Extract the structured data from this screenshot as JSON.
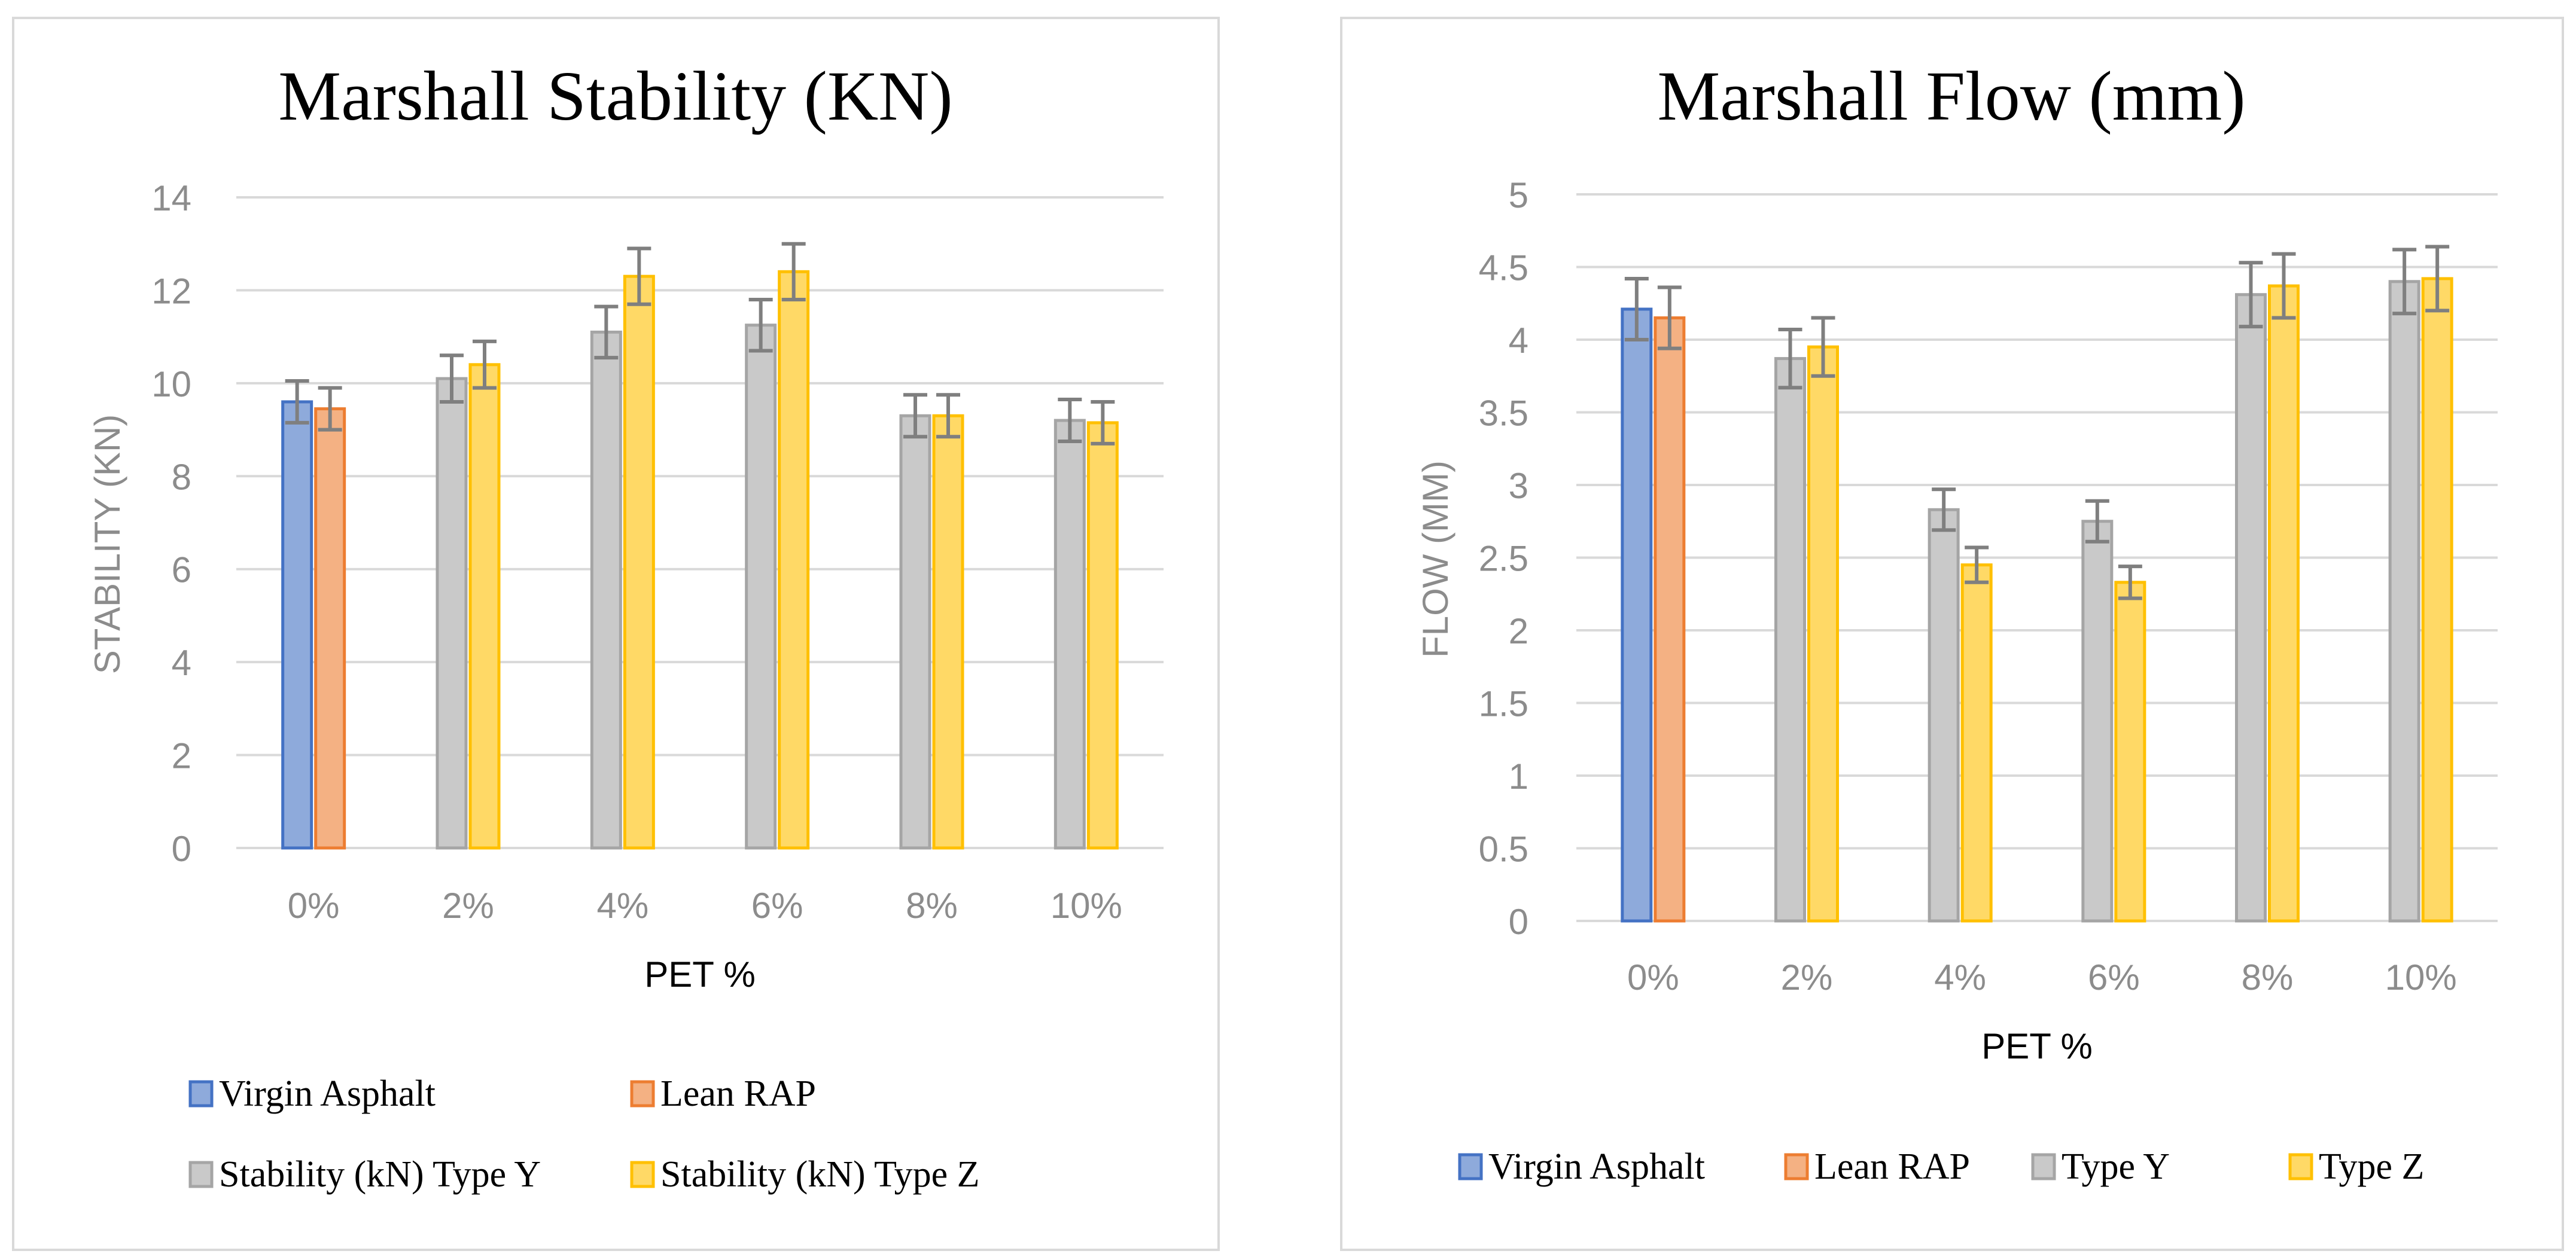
{
  "chart_data": [
    {
      "type": "bar",
      "title": "Marshall Stability (KN)",
      "xlabel": "PET %",
      "ylabel": "STABILITY (KN)",
      "ylim": [
        0,
        14
      ],
      "yticks": [
        0,
        2,
        4,
        6,
        8,
        10,
        12,
        14
      ],
      "categories": [
        "0%",
        "2%",
        "4%",
        "6%",
        "8%",
        "10%"
      ],
      "series": [
        {
          "name": "Virgin Asphalt",
          "color": "#4472c4",
          "fill": "#8eaadb",
          "values": [
            9.6,
            null,
            null,
            null,
            null,
            null
          ],
          "errors": [
            0.45,
            null,
            null,
            null,
            null,
            null
          ]
        },
        {
          "name": "Lean RAP",
          "color": "#ed7d31",
          "fill": "#f4b183",
          "values": [
            9.45,
            null,
            null,
            null,
            null,
            null
          ],
          "errors": [
            0.45,
            null,
            null,
            null,
            null,
            null
          ]
        },
        {
          "name": "Stability (kN) Type Y",
          "color": "#a5a5a5",
          "fill": "#c9c9c9",
          "values": [
            null,
            10.1,
            11.1,
            11.25,
            9.3,
            9.2
          ],
          "errors": [
            null,
            0.5,
            0.55,
            0.55,
            0.45,
            0.45
          ]
        },
        {
          "name": "Stability (kN) Type Z",
          "color": "#ffc000",
          "fill": "#ffd966",
          "values": [
            null,
            10.4,
            12.3,
            12.4,
            9.3,
            9.15
          ],
          "errors": [
            null,
            0.5,
            0.6,
            0.6,
            0.45,
            0.45
          ]
        }
      ],
      "legend_position": "bottom",
      "grid": true
    },
    {
      "type": "bar",
      "title": "Marshall Flow (mm)",
      "xlabel": "PET %",
      "ylabel": "FLOW (MM)",
      "ylim": [
        0,
        5
      ],
      "yticks": [
        0,
        0.5,
        1,
        1.5,
        2,
        2.5,
        3,
        3.5,
        4,
        4.5,
        5
      ],
      "categories": [
        "0%",
        "2%",
        "4%",
        "6%",
        "8%",
        "10%"
      ],
      "series": [
        {
          "name": "Virgin Asphalt",
          "color": "#4472c4",
          "fill": "#8eaadb",
          "values": [
            4.21,
            null,
            null,
            null,
            null,
            null
          ],
          "errors": [
            0.21,
            null,
            null,
            null,
            null,
            null
          ]
        },
        {
          "name": "Lean RAP",
          "color": "#ed7d31",
          "fill": "#f4b183",
          "values": [
            4.15,
            null,
            null,
            null,
            null,
            null
          ],
          "errors": [
            0.21,
            null,
            null,
            null,
            null,
            null
          ]
        },
        {
          "name": "Type Y",
          "color": "#a5a5a5",
          "fill": "#c9c9c9",
          "values": [
            null,
            3.87,
            2.83,
            2.75,
            4.31,
            4.4
          ],
          "errors": [
            null,
            0.2,
            0.14,
            0.14,
            0.22,
            0.22
          ]
        },
        {
          "name": "Type Z",
          "color": "#ffc000",
          "fill": "#ffd966",
          "values": [
            null,
            3.95,
            2.45,
            2.33,
            4.37,
            4.42
          ],
          "errors": [
            null,
            0.2,
            0.12,
            0.11,
            0.22,
            0.22
          ]
        }
      ],
      "legend_position": "bottom",
      "grid": true
    }
  ]
}
